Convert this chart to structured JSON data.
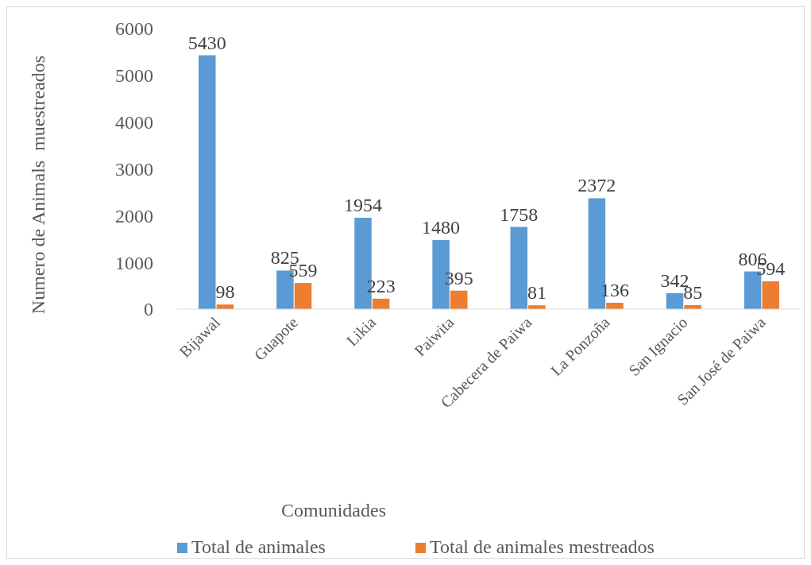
{
  "chart_data": {
    "type": "bar",
    "xlabel": "Comunidades",
    "ylabel": "Numero de Animals  muestreados",
    "categories": [
      "Bijawal",
      "Guapote",
      "Likia",
      "Paiwita",
      "Cabecera de Paiwa",
      "La Ponzoña",
      "San Ignacio",
      "San José de Paiwa"
    ],
    "series": [
      {
        "name": "Total de animales",
        "color": "#5b9bd5",
        "values": [
          5430,
          825,
          1954,
          1480,
          1758,
          2372,
          342,
          806
        ]
      },
      {
        "name": "Total de animales mestreados",
        "color": "#ed7d31",
        "values": [
          98,
          559,
          223,
          395,
          81,
          136,
          85,
          594
        ]
      }
    ],
    "ylim": [
      0,
      6000
    ],
    "yticks": [
      0,
      1000,
      2000,
      3000,
      4000,
      5000,
      6000
    ],
    "grid": false,
    "legend": "bottom",
    "data_labels": true
  }
}
